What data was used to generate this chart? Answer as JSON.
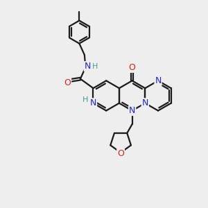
{
  "bg_color": "#eeeeee",
  "bond_color": "#1a1a1a",
  "nitrogen_color": "#2222cc",
  "oxygen_color": "#cc2222",
  "h_color": "#449999",
  "lw": 1.6,
  "figsize": [
    3.0,
    3.0
  ],
  "dpi": 100,
  "xlim": [
    0,
    10
  ],
  "ylim": [
    0,
    10
  ]
}
